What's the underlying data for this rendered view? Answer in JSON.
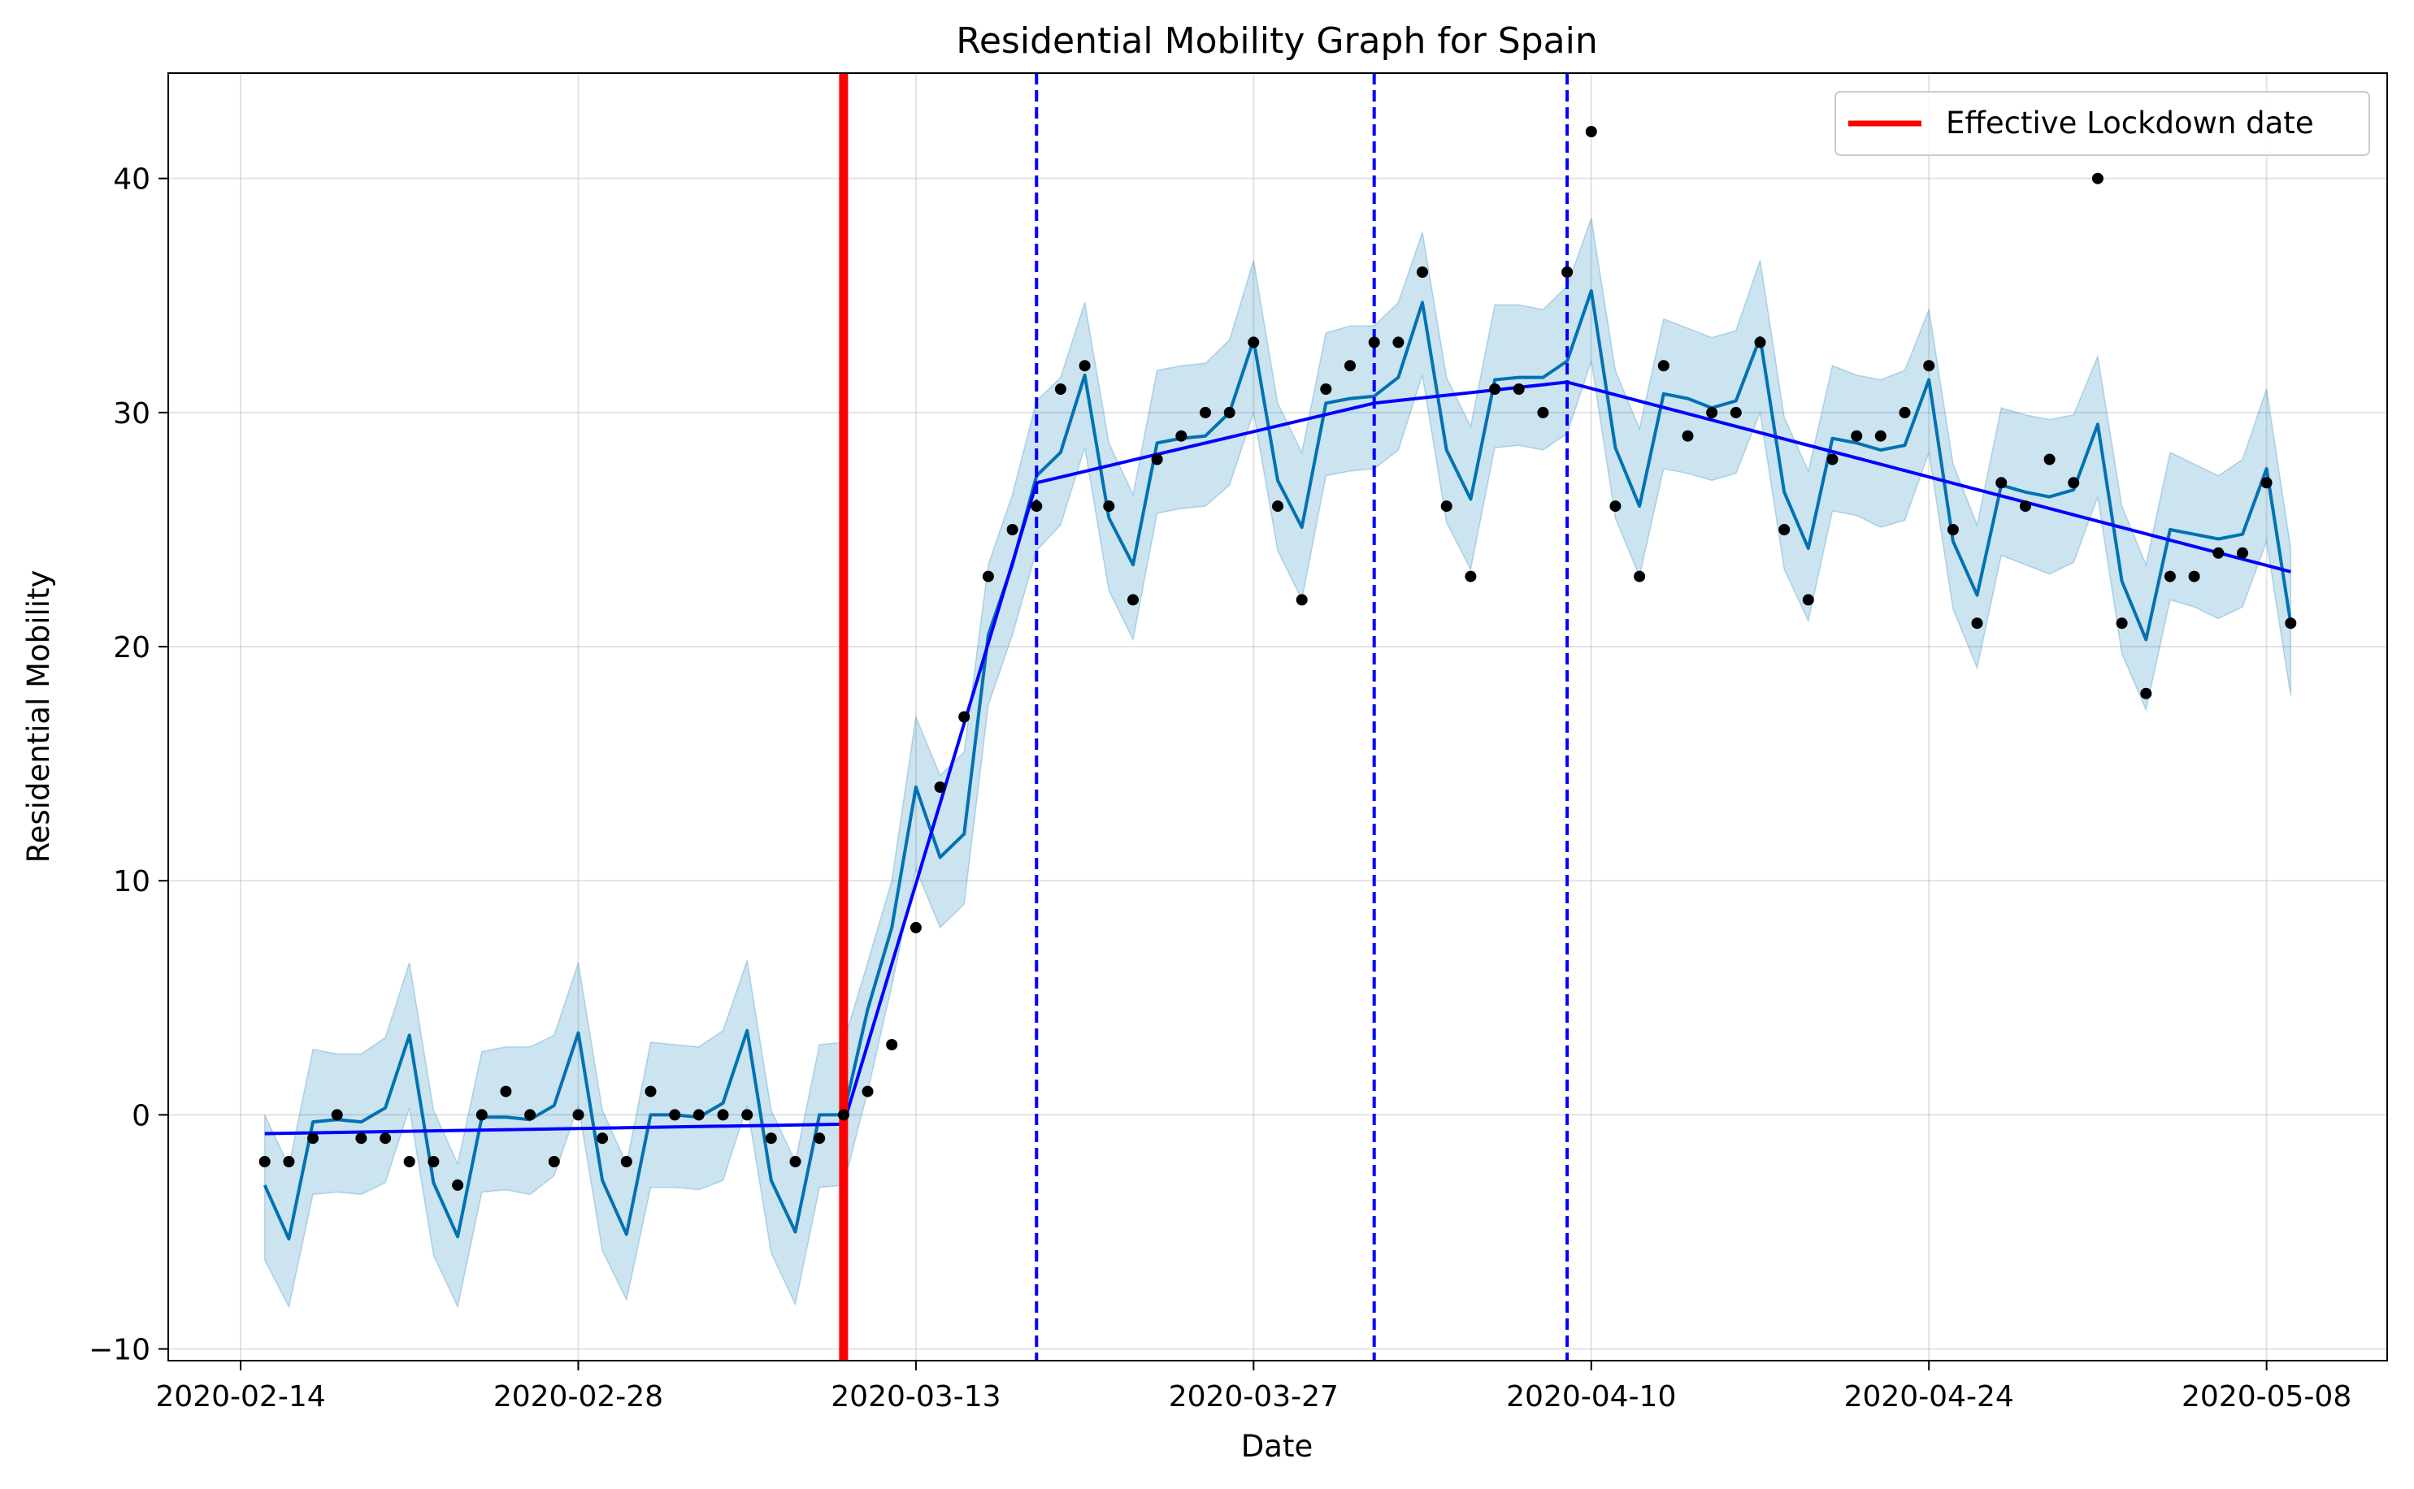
{
  "chart_data": {
    "type": "line",
    "title": "Residential Mobility Graph for Spain",
    "xlabel": "Date",
    "ylabel": "Residential Mobility",
    "x_axis": {
      "start_date": "2020-02-11",
      "end_date": "2020-05-13",
      "ticks": [
        "2020-02-14",
        "2020-02-28",
        "2020-03-13",
        "2020-03-27",
        "2020-04-10",
        "2020-04-24",
        "2020-05-08"
      ]
    },
    "y_axis": {
      "ylim": [
        -10.5,
        44.5
      ],
      "ticks": [
        -10,
        0,
        10,
        20,
        30,
        40
      ]
    },
    "grid": true,
    "legend": {
      "placement": "top-right",
      "entries": [
        {
          "label": "Effective Lockdown date",
          "color": "#ff0000"
        }
      ]
    },
    "colors": {
      "observed": "#000000",
      "forecast": "#0072b2",
      "interval": "#0072b2",
      "trend": "#0000ff",
      "lockdown": "#ff0000",
      "changepoints": "#0000ff"
    },
    "lockdown_date": "2020-03-10",
    "changepoints": [
      "2020-03-18",
      "2020-04-01",
      "2020-04-09"
    ],
    "series": [
      {
        "name": "observed",
        "style": "points",
        "start_date": "2020-02-15",
        "values": [
          -2,
          -2,
          -1,
          0,
          -1,
          -1,
          -2,
          -2,
          -3,
          0,
          1,
          0,
          -2,
          0,
          -1,
          -2,
          1,
          0,
          0,
          0,
          0,
          -1,
          -2,
          -1,
          0,
          1,
          3,
          8,
          14,
          17,
          23,
          25,
          26,
          31,
          32,
          26,
          22,
          28,
          29,
          30,
          30,
          33,
          26,
          22,
          31,
          32,
          33,
          33,
          36,
          26,
          23,
          31,
          31,
          30,
          36,
          42,
          26,
          23,
          32,
          29,
          30,
          30,
          33,
          25,
          22,
          28,
          29,
          29,
          30,
          32,
          25,
          21,
          27,
          26,
          28,
          27,
          40,
          21,
          18,
          23,
          23,
          24,
          24,
          27,
          21
        ]
      },
      {
        "name": "forecast",
        "style": "line",
        "start_date": "2020-02-15",
        "values": [
          -3.0,
          -5.3,
          -0.3,
          -0.2,
          -0.3,
          0.3,
          3.4,
          -2.9,
          -5.2,
          -0.1,
          -0.1,
          -0.2,
          0.4,
          3.5,
          -2.8,
          -5.1,
          0.0,
          0.0,
          -0.1,
          0.5,
          3.6,
          -2.8,
          -5.0,
          0.0,
          0.0,
          4.5,
          8.0,
          14.0,
          11.0,
          12.0,
          20.5,
          23.5,
          27.3,
          28.3,
          31.6,
          25.5,
          23.5,
          28.7,
          28.9,
          29.0,
          30.0,
          33.1,
          27.1,
          25.1,
          30.4,
          30.6,
          30.7,
          31.5,
          34.7,
          28.4,
          26.3,
          31.4,
          31.5,
          31.5,
          32.2,
          35.2,
          28.5,
          26.0,
          30.8,
          30.6,
          30.2,
          30.5,
          33.2,
          26.6,
          24.2,
          28.9,
          28.7,
          28.4,
          28.6,
          31.4,
          24.5,
          22.2,
          26.9,
          26.6,
          26.4,
          26.7,
          29.5,
          22.8,
          20.3,
          25.0,
          24.8,
          24.6,
          24.8,
          27.6,
          21.0
        ]
      },
      {
        "name": "interval_upper",
        "style": "band",
        "start_date": "2020-02-15",
        "values": [
          0.0,
          -2.2,
          2.8,
          2.6,
          2.6,
          3.3,
          6.5,
          0.2,
          -2.1,
          2.7,
          2.9,
          2.9,
          3.4,
          6.5,
          0.2,
          -2.1,
          3.1,
          3.0,
          2.9,
          3.6,
          6.6,
          0.2,
          -2.0,
          3.0,
          3.1,
          6.5,
          10.0,
          17.0,
          14.5,
          15.5,
          23.5,
          26.5,
          30.5,
          31.5,
          34.7,
          28.7,
          26.5,
          31.8,
          32.0,
          32.1,
          33.1,
          36.5,
          30.4,
          28.3,
          33.4,
          33.7,
          33.7,
          34.7,
          37.7,
          31.5,
          29.4,
          34.6,
          34.6,
          34.4,
          35.4,
          38.3,
          31.8,
          29.3,
          34.0,
          33.6,
          33.2,
          33.5,
          36.5,
          29.8,
          27.5,
          32.0,
          31.6,
          31.4,
          31.8,
          34.4,
          27.8,
          25.2,
          30.2,
          29.9,
          29.7,
          29.9,
          32.4,
          26.0,
          23.5,
          28.3,
          27.8,
          27.3,
          28.0,
          31.0,
          24.2
        ]
      },
      {
        "name": "interval_lower",
        "style": "band",
        "start_date": "2020-02-15",
        "values": [
          -6.2,
          -8.2,
          -3.4,
          -3.3,
          -3.4,
          -2.9,
          0.3,
          -6.0,
          -8.2,
          -3.3,
          -3.2,
          -3.4,
          -2.6,
          0.4,
          -5.8,
          -7.9,
          -3.1,
          -3.1,
          -3.2,
          -2.8,
          0.4,
          -5.9,
          -8.1,
          -3.1,
          -3.0,
          1.0,
          5.5,
          10.5,
          8.0,
          9.0,
          17.5,
          20.5,
          24.1,
          25.2,
          28.5,
          22.4,
          20.3,
          25.7,
          25.9,
          26.0,
          26.9,
          30.0,
          24.1,
          22.0,
          27.3,
          27.5,
          27.6,
          28.4,
          31.6,
          25.3,
          23.3,
          28.5,
          28.6,
          28.4,
          29.1,
          32.2,
          25.5,
          23.0,
          27.6,
          27.4,
          27.1,
          27.4,
          30.0,
          23.3,
          21.1,
          25.8,
          25.6,
          25.1,
          25.4,
          28.3,
          21.6,
          19.1,
          23.9,
          23.5,
          23.1,
          23.6,
          26.4,
          19.7,
          17.3,
          22.0,
          21.7,
          21.2,
          21.7,
          24.5,
          17.9
        ]
      },
      {
        "name": "trend",
        "style": "line",
        "points": [
          {
            "date": "2020-02-15",
            "value": -0.8
          },
          {
            "date": "2020-03-10",
            "value": -0.4
          },
          {
            "date": "2020-03-18",
            "value": 27.0
          },
          {
            "date": "2020-04-01",
            "value": 30.4
          },
          {
            "date": "2020-04-09",
            "value": 31.3
          },
          {
            "date": "2020-05-09",
            "value": 23.2
          }
        ]
      }
    ]
  }
}
